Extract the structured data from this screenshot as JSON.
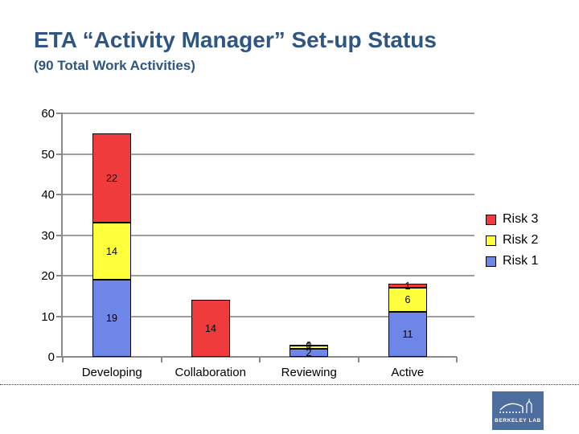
{
  "slide": {
    "title": "ETA “Activity Manager” Set-up Status",
    "subtitle": "(90 Total Work Activities)",
    "title_color": "#2E5680"
  },
  "chart_data": {
    "type": "bar",
    "stacked": true,
    "title": "",
    "xlabel": "",
    "ylabel": "",
    "categories": [
      "Developing",
      "Collaboration",
      "Reviewing",
      "Active"
    ],
    "series": [
      {
        "name": "Risk 1",
        "color": "#6D86E8",
        "values": [
          19,
          null,
          2,
          11
        ]
      },
      {
        "name": "Risk 2",
        "color": "#FFFF3B",
        "values": [
          14,
          null,
          1,
          6
        ]
      },
      {
        "name": "Risk 3",
        "color": "#EF3B3B",
        "values": [
          22,
          14,
          0,
          1
        ]
      }
    ],
    "category_totals": [
      55,
      14,
      3,
      18
    ],
    "y_ticks": [
      0,
      10,
      20,
      30,
      40,
      50,
      60
    ],
    "ylim": [
      0,
      60
    ],
    "grid": true,
    "data_labels": true,
    "legend_position": "right"
  },
  "legend": {
    "items": [
      {
        "label": "Risk 3",
        "color": "#EF3B3B"
      },
      {
        "label": "Risk 2",
        "color": "#FFFF3B"
      },
      {
        "label": "Risk 1",
        "color": "#6D86E8"
      }
    ]
  },
  "logo": {
    "text": "BERKELEY LAB",
    "bg": "#4C6D9E"
  }
}
